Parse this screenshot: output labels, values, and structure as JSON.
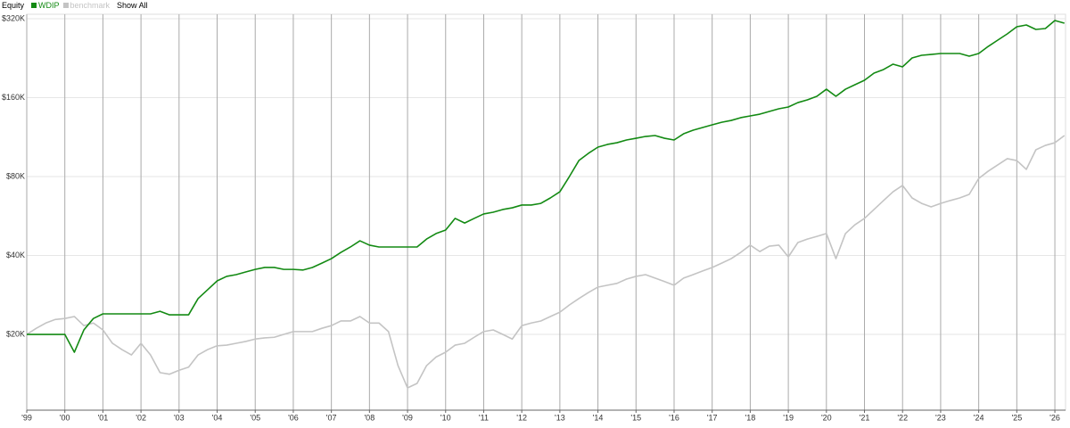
{
  "chart_data": {
    "type": "line",
    "title": "Equity",
    "show_all_label": "Show All",
    "log": true,
    "grid": true,
    "x": [
      1999,
      1999.25,
      1999.5,
      1999.75,
      2000,
      2000.25,
      2000.5,
      2000.75,
      2001,
      2001.25,
      2001.5,
      2001.75,
      2002,
      2002.25,
      2002.5,
      2002.75,
      2003,
      2003.25,
      2003.5,
      2003.75,
      2004,
      2004.25,
      2004.5,
      2004.75,
      2005,
      2005.25,
      2005.5,
      2005.75,
      2006,
      2006.25,
      2006.5,
      2006.75,
      2007,
      2007.25,
      2007.5,
      2007.75,
      2008,
      2008.25,
      2008.5,
      2008.75,
      2009,
      2009.25,
      2009.5,
      2009.75,
      2010,
      2010.25,
      2010.5,
      2010.75,
      2011,
      2011.25,
      2011.5,
      2011.75,
      2012,
      2012.25,
      2012.5,
      2012.75,
      2013,
      2013.25,
      2013.5,
      2013.75,
      2014,
      2014.25,
      2014.5,
      2014.75,
      2015,
      2015.25,
      2015.5,
      2015.75,
      2016,
      2016.25,
      2016.5,
      2016.75,
      2017,
      2017.25,
      2017.5,
      2017.75,
      2018,
      2018.25,
      2018.5,
      2018.75,
      2019,
      2019.25,
      2019.5,
      2019.75,
      2020,
      2020.25,
      2020.5,
      2020.75,
      2021,
      2021.25,
      2021.5,
      2021.75,
      2022,
      2022.25,
      2022.5,
      2022.75,
      2023,
      2023.25,
      2023.5,
      2023.75,
      2024,
      2024.25,
      2024.5,
      2024.75,
      2025,
      2025.25,
      2025.5,
      2025.75,
      2026,
      2026.25
    ],
    "series": [
      {
        "name": "WDIP",
        "color": "#138a13",
        "values": [
          20000,
          20000,
          20000,
          20000,
          20000,
          17100,
          20800,
          23000,
          23950,
          23950,
          23950,
          23950,
          23950,
          23950,
          24500,
          23750,
          23750,
          23750,
          27400,
          29600,
          32000,
          33300,
          33800,
          34600,
          35400,
          36000,
          36000,
          35400,
          35400,
          35200,
          36000,
          37400,
          38900,
          41100,
          43100,
          45500,
          43800,
          43100,
          43100,
          43100,
          43100,
          43100,
          46200,
          48500,
          50000,
          55400,
          53200,
          55400,
          57600,
          58500,
          59900,
          60800,
          62300,
          62300,
          63200,
          66300,
          70000,
          80000,
          92100,
          98100,
          103600,
          106100,
          107700,
          110300,
          112000,
          113800,
          114700,
          112000,
          110300,
          116500,
          120200,
          123100,
          126000,
          128900,
          131000,
          134200,
          136300,
          138400,
          141700,
          145100,
          147400,
          153200,
          156900,
          161900,
          172300,
          161900,
          172300,
          179300,
          186400,
          198500,
          204800,
          214700,
          209700,
          226700,
          232100,
          233900,
          235800,
          235800,
          235800,
          230300,
          235800,
          251000,
          265200,
          280100,
          298200,
          302900,
          291300,
          293600,
          315000,
          307800
        ]
      },
      {
        "name": "benchmark",
        "color": "#c4c4c4",
        "values": [
          20000,
          21100,
          22100,
          22800,
          23000,
          23400,
          21600,
          22100,
          20800,
          18500,
          17500,
          16700,
          18500,
          16700,
          14300,
          14100,
          14600,
          15000,
          16700,
          17500,
          18100,
          18200,
          18500,
          18800,
          19200,
          19400,
          19500,
          20000,
          20500,
          20500,
          20500,
          21100,
          21600,
          22500,
          22500,
          23400,
          22100,
          22100,
          20500,
          15200,
          12500,
          13000,
          15200,
          16400,
          17100,
          18200,
          18500,
          19500,
          20500,
          20800,
          20000,
          19200,
          21600,
          22100,
          22500,
          23400,
          24300,
          25900,
          27400,
          28900,
          30300,
          30800,
          31300,
          32500,
          33300,
          33800,
          32800,
          31800,
          30800,
          32800,
          33800,
          34900,
          36000,
          37400,
          38900,
          41100,
          43800,
          41400,
          43400,
          43800,
          39500,
          44800,
          46200,
          47300,
          48500,
          38900,
          48500,
          52400,
          55400,
          59900,
          64800,
          70000,
          74000,
          66300,
          63200,
          61300,
          63200,
          64800,
          66300,
          68400,
          78700,
          83900,
          88600,
          93600,
          92100,
          85200,
          101200,
          105200,
          107700,
          114700
        ]
      }
    ],
    "xlim": [
      1999,
      2026.28
    ],
    "xticks": [
      {
        "value": 1999,
        "label": "'99"
      },
      {
        "value": 2000,
        "label": "'00"
      },
      {
        "value": 2001,
        "label": "'01"
      },
      {
        "value": 2002,
        "label": "'02"
      },
      {
        "value": 2003,
        "label": "'03"
      },
      {
        "value": 2004,
        "label": "'04"
      },
      {
        "value": 2005,
        "label": "'05"
      },
      {
        "value": 2006,
        "label": "'06"
      },
      {
        "value": 2007,
        "label": "'07"
      },
      {
        "value": 2008,
        "label": "'08"
      },
      {
        "value": 2009,
        "label": "'09"
      },
      {
        "value": 2010,
        "label": "'10"
      },
      {
        "value": 2011,
        "label": "'11"
      },
      {
        "value": 2012,
        "label": "'12"
      },
      {
        "value": 2013,
        "label": "'13"
      },
      {
        "value": 2014,
        "label": "'14"
      },
      {
        "value": 2015,
        "label": "'15"
      },
      {
        "value": 2016,
        "label": "'16"
      },
      {
        "value": 2017,
        "label": "'17"
      },
      {
        "value": 2018,
        "label": "'18"
      },
      {
        "value": 2019,
        "label": "'19"
      },
      {
        "value": 2020,
        "label": "'20"
      },
      {
        "value": 2021,
        "label": "'21"
      },
      {
        "value": 2022,
        "label": "'22"
      },
      {
        "value": 2023,
        "label": "'23"
      },
      {
        "value": 2024,
        "label": "'24"
      },
      {
        "value": 2025,
        "label": "'25"
      },
      {
        "value": 2026,
        "label": "'26"
      }
    ],
    "ylim": [
      10280,
      332800
    ],
    "yticks": [
      {
        "value": 20000,
        "label": "$20K"
      },
      {
        "value": 40000,
        "label": "$40K"
      },
      {
        "value": 80000,
        "label": "$80K"
      },
      {
        "value": 160000,
        "label": "$160K"
      },
      {
        "value": 320000,
        "label": "$320K"
      }
    ]
  }
}
